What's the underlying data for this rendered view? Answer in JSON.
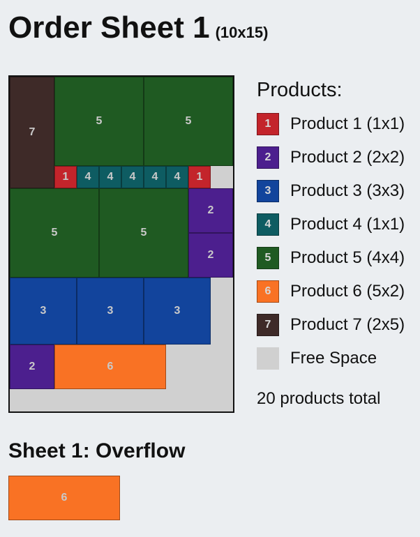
{
  "header": {
    "title": "Order Sheet 1",
    "dimensions": "(10x15)"
  },
  "colors": {
    "1": "#c3242b",
    "2": "#4c1f8e",
    "3": "#12449c",
    "4": "#0e5c62",
    "5": "#1f5a22",
    "6": "#f97224",
    "7": "#3e2a28",
    "free": "#d0d0d0",
    "label_text": "#c9c9c9"
  },
  "sheet": {
    "cols": 10,
    "rows": 15,
    "pieces": [
      {
        "label": "7",
        "product": 7,
        "col": 0,
        "row": 0,
        "w": 2,
        "h": 5
      },
      {
        "label": "5",
        "product": 5,
        "col": 2,
        "row": 0,
        "w": 4,
        "h": 4
      },
      {
        "label": "5",
        "product": 5,
        "col": 6,
        "row": 0,
        "w": 4,
        "h": 4
      },
      {
        "label": "1",
        "product": 1,
        "col": 2,
        "row": 4,
        "w": 1,
        "h": 1
      },
      {
        "label": "4",
        "product": 4,
        "col": 3,
        "row": 4,
        "w": 1,
        "h": 1
      },
      {
        "label": "4",
        "product": 4,
        "col": 4,
        "row": 4,
        "w": 1,
        "h": 1
      },
      {
        "label": "4",
        "product": 4,
        "col": 5,
        "row": 4,
        "w": 1,
        "h": 1
      },
      {
        "label": "4",
        "product": 4,
        "col": 6,
        "row": 4,
        "w": 1,
        "h": 1
      },
      {
        "label": "4",
        "product": 4,
        "col": 7,
        "row": 4,
        "w": 1,
        "h": 1
      },
      {
        "label": "1",
        "product": 1,
        "col": 8,
        "row": 4,
        "w": 1,
        "h": 1
      },
      {
        "label": "5",
        "product": 5,
        "col": 0,
        "row": 5,
        "w": 4,
        "h": 4
      },
      {
        "label": "5",
        "product": 5,
        "col": 4,
        "row": 5,
        "w": 4,
        "h": 4
      },
      {
        "label": "2",
        "product": 2,
        "col": 8,
        "row": 5,
        "w": 2,
        "h": 2
      },
      {
        "label": "2",
        "product": 2,
        "col": 8,
        "row": 7,
        "w": 2,
        "h": 2
      },
      {
        "label": "3",
        "product": 3,
        "col": 0,
        "row": 9,
        "w": 3,
        "h": 3
      },
      {
        "label": "3",
        "product": 3,
        "col": 3,
        "row": 9,
        "w": 3,
        "h": 3
      },
      {
        "label": "3",
        "product": 3,
        "col": 6,
        "row": 9,
        "w": 3,
        "h": 3
      },
      {
        "label": "2",
        "product": 2,
        "col": 0,
        "row": 12,
        "w": 2,
        "h": 2
      },
      {
        "label": "6",
        "product": 6,
        "col": 2,
        "row": 12,
        "w": 5,
        "h": 2
      }
    ]
  },
  "legend": {
    "title": "Products:",
    "items": [
      {
        "swatch": "1",
        "label": "Product 1 (1x1)",
        "product": "1"
      },
      {
        "swatch": "2",
        "label": "Product 2 (2x2)",
        "product": "2"
      },
      {
        "swatch": "3",
        "label": "Product 3 (3x3)",
        "product": "3"
      },
      {
        "swatch": "4",
        "label": "Product 4 (1x1)",
        "product": "4"
      },
      {
        "swatch": "5",
        "label": "Product 5 (4x4)",
        "product": "5"
      },
      {
        "swatch": "6",
        "label": "Product 6 (5x2)",
        "product": "6"
      },
      {
        "swatch": "7",
        "label": "Product 7 (2x5)",
        "product": "7"
      },
      {
        "swatch": "",
        "label": "Free Space",
        "product": "free"
      }
    ],
    "total": "20 products total"
  },
  "overflow": {
    "title": "Sheet 1: Overflow",
    "pieces": [
      {
        "label": "6",
        "product": 6,
        "col": 0,
        "row": 0,
        "w": 5,
        "h": 2
      }
    ]
  }
}
